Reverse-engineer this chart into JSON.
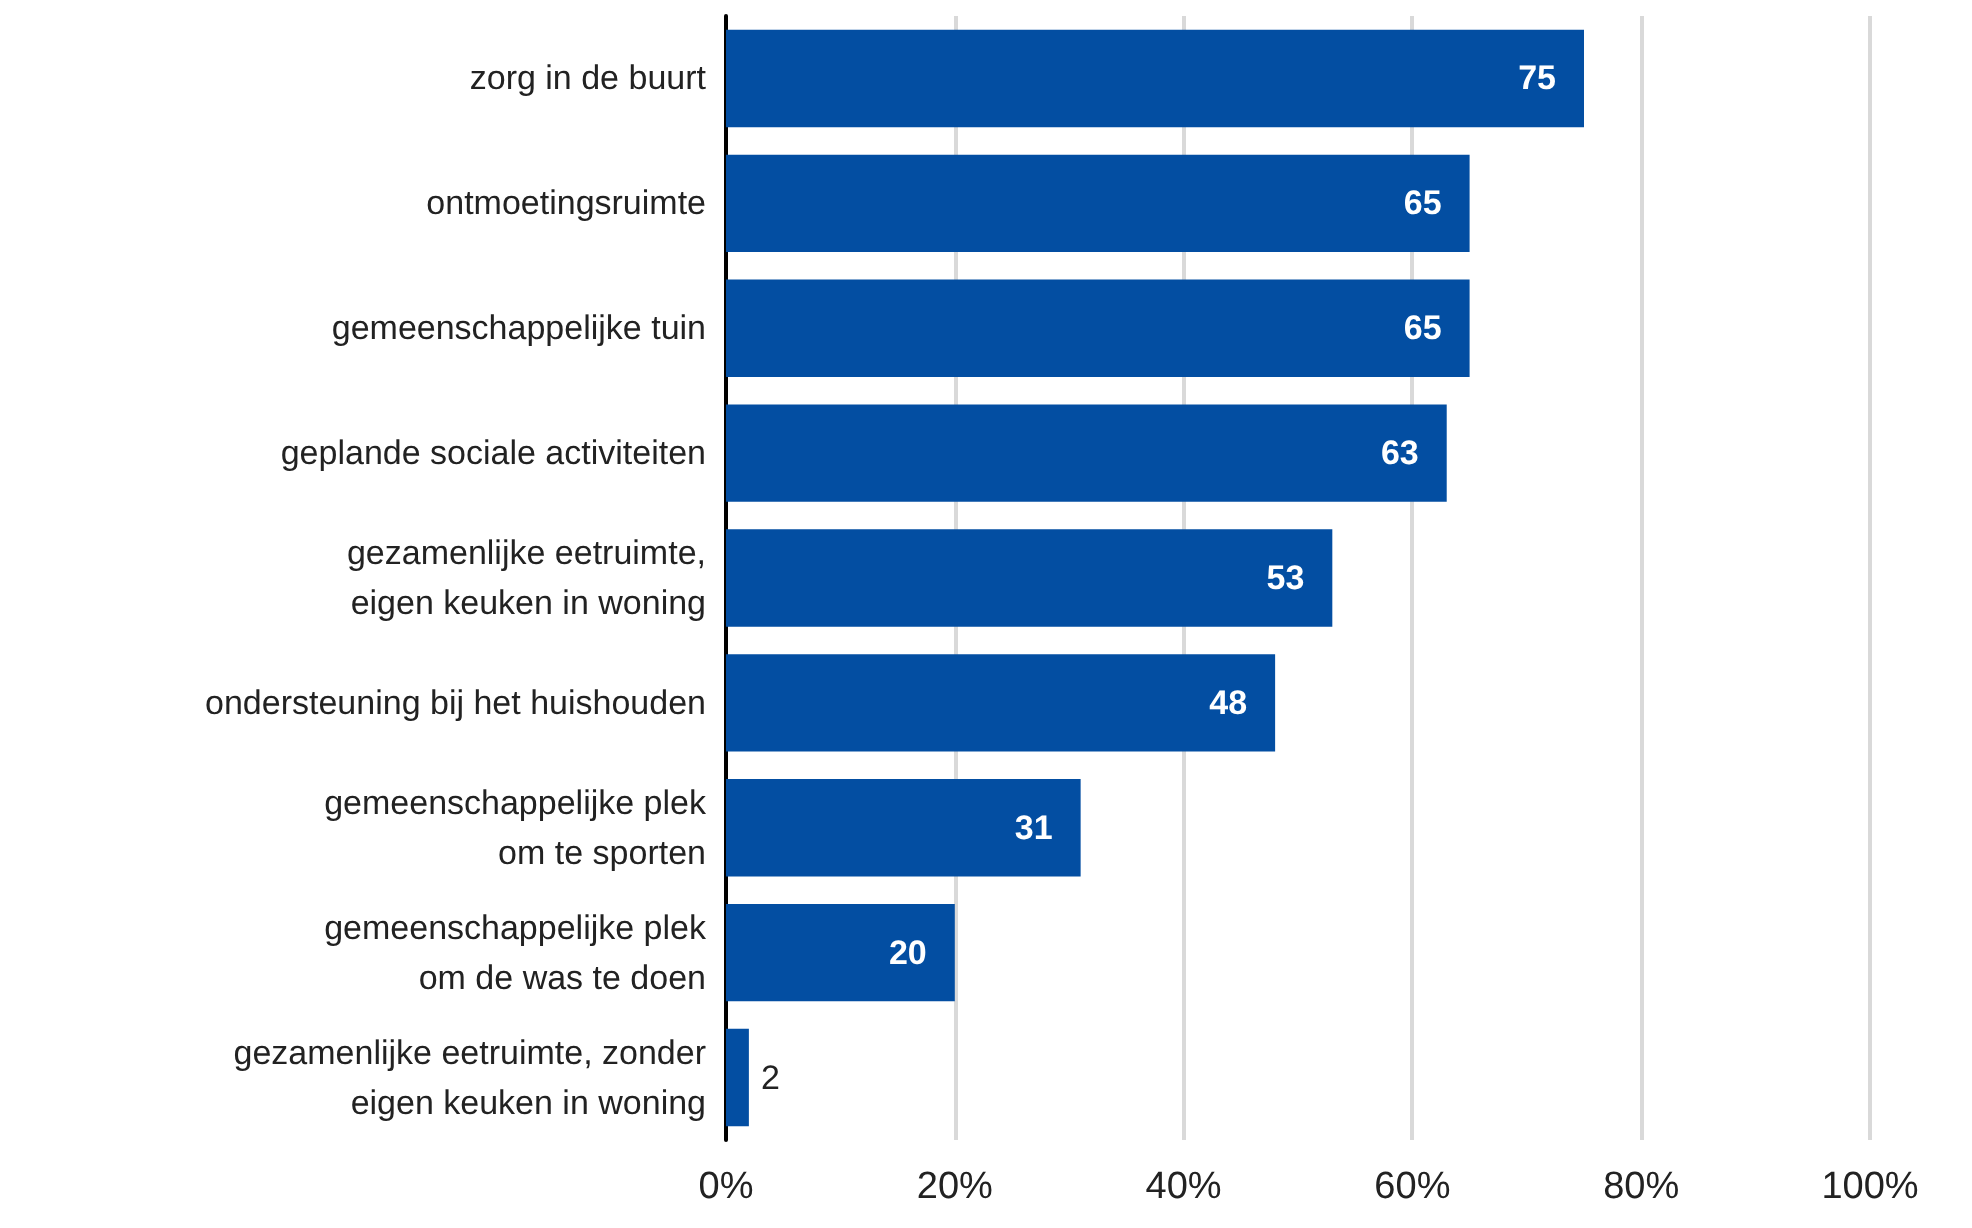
{
  "chart_data": {
    "type": "bar",
    "orientation": "horizontal",
    "categories": [
      "zorg in de buurt",
      "ontmoetingsruimte",
      "gemeenschappelijke tuin",
      "geplande sociale activiteiten",
      "gezamenlijke eetruimte,\neigen keuken in woning",
      "ondersteuning bij het huishouden",
      "gemeenschappelijke plek\nom te sporten",
      "gemeenschappelijke plek\nom de was te doen",
      "gezamenlijke eetruimte, zonder\neigen keuken in woning"
    ],
    "values": [
      75,
      65,
      65,
      63,
      53,
      48,
      31,
      20,
      2
    ],
    "color": "#034ea2",
    "xlim": [
      0,
      100
    ],
    "xticks": [
      {
        "value": 0,
        "label": "0%"
      },
      {
        "value": 20,
        "label": "20%"
      },
      {
        "value": 40,
        "label": "40%"
      },
      {
        "value": 60,
        "label": "60%"
      },
      {
        "value": 80,
        "label": "80%"
      },
      {
        "value": 100,
        "label": "100%"
      }
    ],
    "grid": "x",
    "data_labels": true
  }
}
